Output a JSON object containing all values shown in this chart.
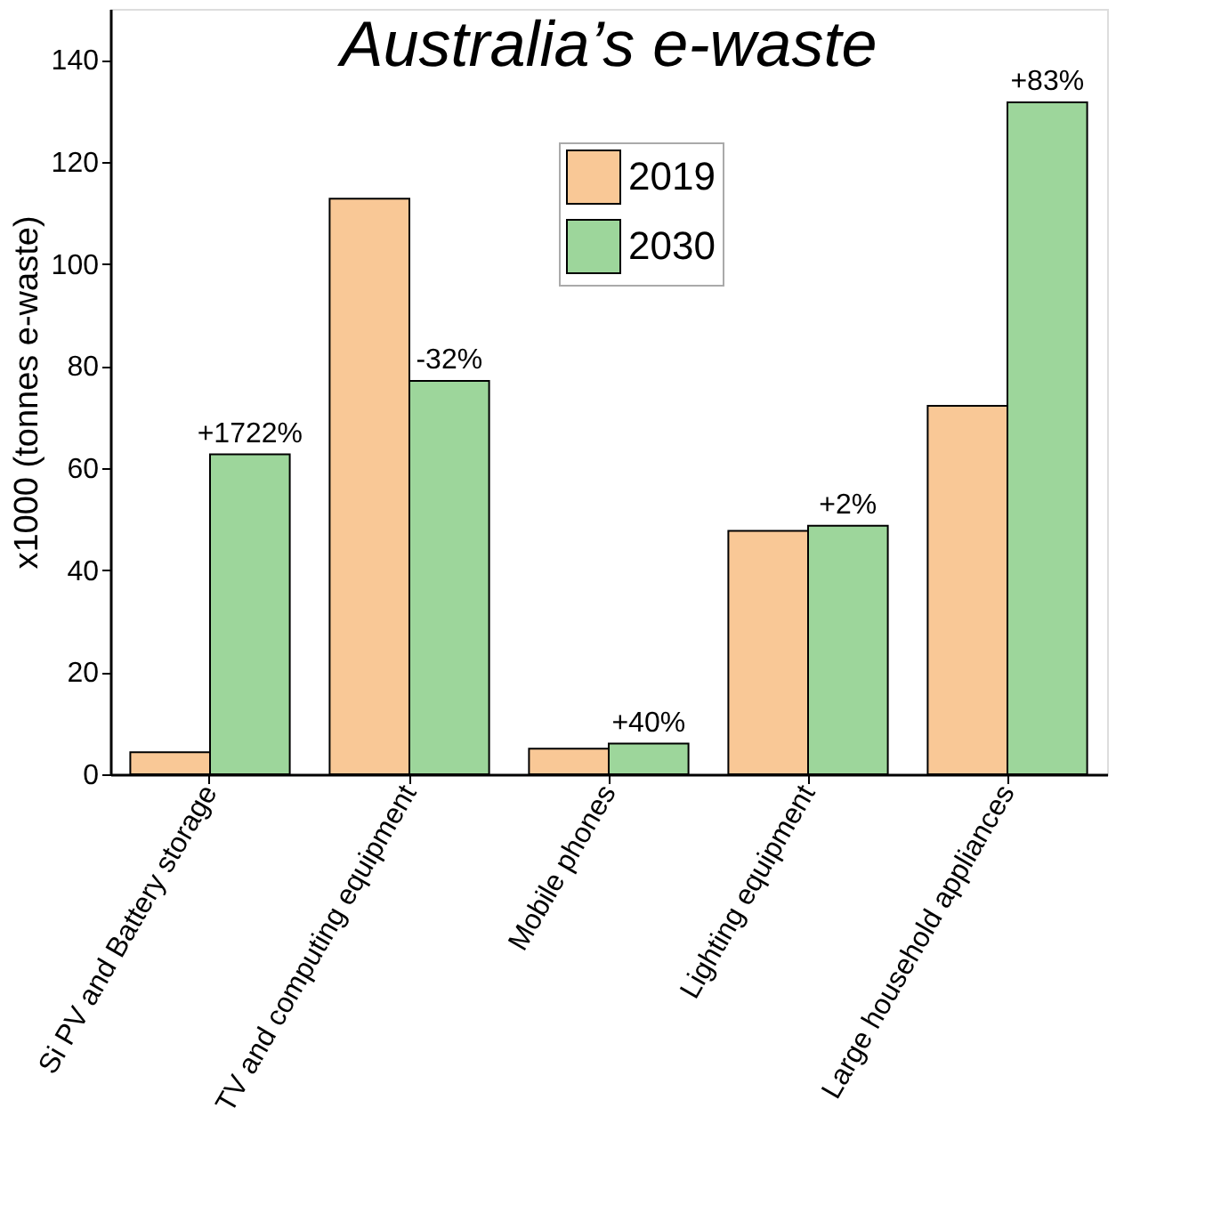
{
  "chart_data": {
    "type": "bar",
    "title": "Australia’s e-waste",
    "ylabel": "x1000 (tonnes e-waste)",
    "categories": [
      "Si PV and Battery storage",
      "TV and computing equipment",
      "Mobile phones",
      "Lighting equipment",
      "Large household appliances"
    ],
    "series": [
      {
        "name": "2019",
        "color": "#f9c896",
        "values": [
          4.3,
          112.8,
          5.0,
          47.7,
          72.2
        ]
      },
      {
        "name": "2030",
        "color": "#9dd69b",
        "values": [
          62.7,
          77.1,
          6.0,
          48.7,
          131.7
        ]
      }
    ],
    "ylim": [
      0,
      150
    ],
    "yticks": [
      0,
      20,
      40,
      60,
      80,
      100,
      120,
      140
    ],
    "grid": false,
    "legend": "top",
    "annotations": [
      {
        "text": "+1722%",
        "x": "Si PV and Battery storage",
        "y": 62.7
      },
      {
        "text": "-32%",
        "x": "TV and computing equipment",
        "y": 77.1
      },
      {
        "text": "+40%",
        "x": "Mobile phones",
        "y": 6.0
      },
      {
        "text": "+2%",
        "x": "Lighting equipment",
        "y": 48.7
      },
      {
        "text": "+83%",
        "x": "Large household appliances",
        "y": 131.7
      }
    ]
  }
}
